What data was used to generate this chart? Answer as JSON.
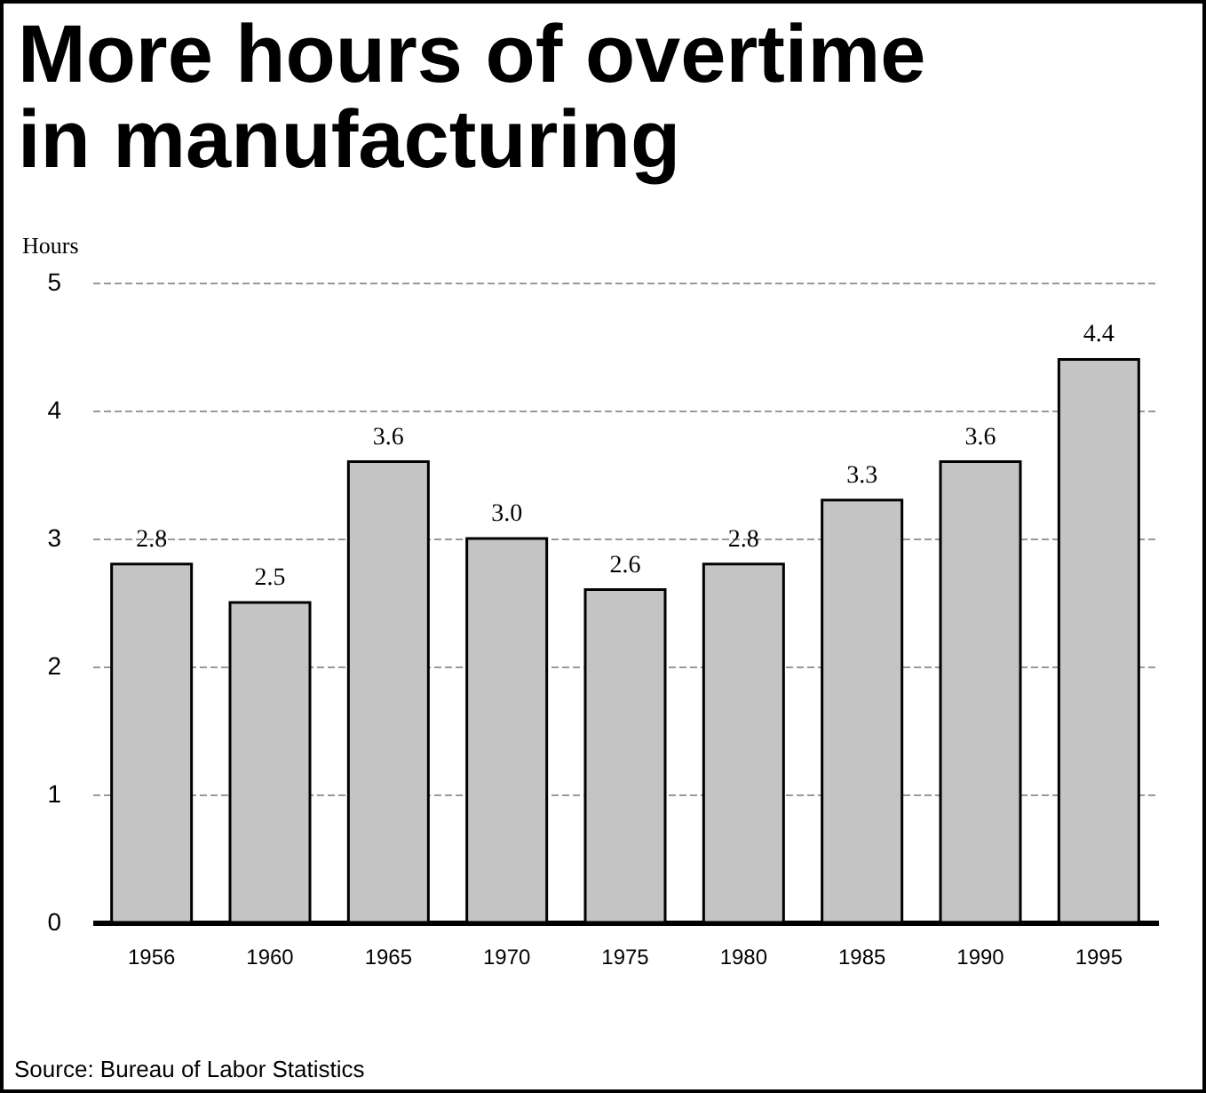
{
  "chart_data": {
    "type": "bar",
    "title": "More hours of overtime in manufacturing",
    "ylabel": "Hours",
    "categories": [
      "1956",
      "1960",
      "1965",
      "1970",
      "1975",
      "1980",
      "1985",
      "1990",
      "1995"
    ],
    "values": [
      2.8,
      2.5,
      3.6,
      3.0,
      2.6,
      2.8,
      3.3,
      3.6,
      4.4
    ],
    "value_labels": [
      "2.8",
      "2.5",
      "3.6",
      "3.0",
      "2.6",
      "2.8",
      "3.3",
      "3.6",
      "4.4"
    ],
    "color": "#c4c4c4",
    "ylim": [
      0,
      5
    ],
    "yticks": [
      0,
      1,
      2,
      3,
      4,
      5
    ],
    "grid": "y",
    "annotations": [
      "Source: Bureau of Labor Statistics"
    ]
  }
}
